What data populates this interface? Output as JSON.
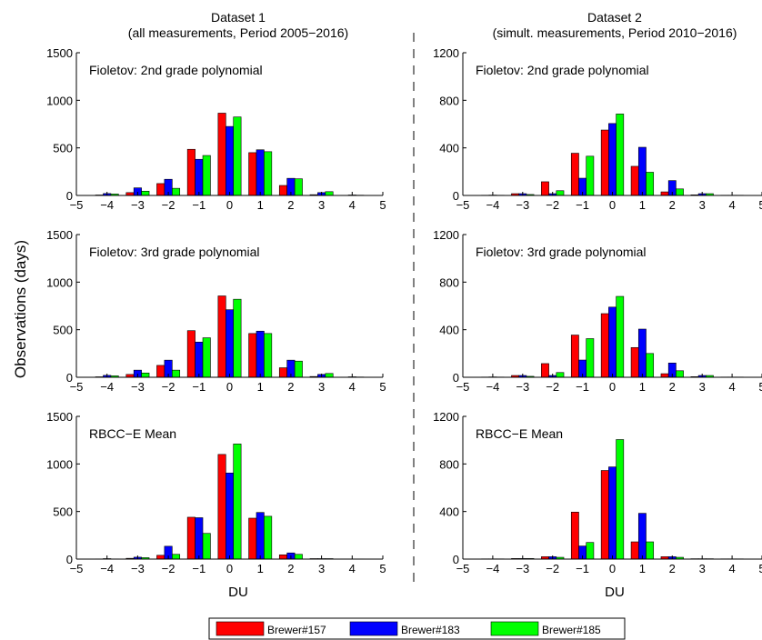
{
  "columns": [
    {
      "title_line1": "Dataset 1",
      "title_line2": "(all measurements, Period 2005−2016)"
    },
    {
      "title_line1": "Dataset 2",
      "title_line2": "(simult. measurements, Period 2010−2016)"
    }
  ],
  "ylabel": "Observations (days)",
  "xlabel": "DU",
  "legend": {
    "position": "bottom-center",
    "entries": [
      "Brewer#157",
      "Brewer#183",
      "Brewer#185"
    ]
  },
  "colors": {
    "Brewer#157": "#ff0000",
    "Brewer#183": "#0000ff",
    "Brewer#185": "#00ff00"
  },
  "chart_data": [
    {
      "type": "bar",
      "panel": "dataset1-poly2",
      "annotation": "Fioletov: 2nd grade polynomial",
      "categories": [
        -4,
        -3,
        -2,
        -1,
        0,
        1,
        2,
        3,
        4
      ],
      "xlim": [
        -5,
        5
      ],
      "xticks": [
        -5,
        -4,
        -3,
        -2,
        -1,
        0,
        1,
        2,
        3,
        4,
        5
      ],
      "ylim": [
        0,
        1500
      ],
      "yticks": [
        0,
        500,
        1000,
        1500
      ],
      "series": [
        {
          "name": "Brewer#157",
          "values": [
            5,
            30,
            125,
            485,
            865,
            450,
            105,
            8,
            2
          ]
        },
        {
          "name": "Brewer#183",
          "values": [
            20,
            80,
            170,
            380,
            725,
            480,
            180,
            30,
            5
          ]
        },
        {
          "name": "Brewer#185",
          "values": [
            15,
            45,
            75,
            420,
            825,
            460,
            175,
            40,
            3
          ]
        }
      ]
    },
    {
      "type": "bar",
      "panel": "dataset2-poly2",
      "annotation": "Fioletov: 2nd grade polynomial",
      "categories": [
        -4,
        -3,
        -2,
        -1,
        0,
        1,
        2,
        3,
        4
      ],
      "xlim": [
        -5,
        5
      ],
      "xticks": [
        -5,
        -4,
        -3,
        -2,
        -1,
        0,
        1,
        2,
        3,
        4,
        5
      ],
      "ylim": [
        0,
        1200
      ],
      "yticks": [
        0,
        400,
        800,
        1200
      ],
      "series": [
        {
          "name": "Brewer#157",
          "values": [
            2,
            15,
            115,
            355,
            550,
            245,
            30,
            5,
            2
          ]
        },
        {
          "name": "Brewer#183",
          "values": [
            3,
            15,
            15,
            145,
            605,
            405,
            125,
            15,
            2
          ]
        },
        {
          "name": "Brewer#185",
          "values": [
            2,
            8,
            40,
            330,
            685,
            195,
            55,
            15,
            2
          ]
        }
      ]
    },
    {
      "type": "bar",
      "panel": "dataset1-poly3",
      "annotation": "Fioletov: 3rd grade polynomial",
      "categories": [
        -4,
        -3,
        -2,
        -1,
        0,
        1,
        2,
        3,
        4
      ],
      "xlim": [
        -5,
        5
      ],
      "xticks": [
        -5,
        -4,
        -3,
        -2,
        -1,
        0,
        1,
        2,
        3,
        4,
        5
      ],
      "ylim": [
        0,
        1500
      ],
      "yticks": [
        0,
        500,
        1000,
        1500
      ],
      "series": [
        {
          "name": "Brewer#157",
          "values": [
            5,
            30,
            125,
            490,
            855,
            460,
            100,
            8,
            2
          ]
        },
        {
          "name": "Brewer#183",
          "values": [
            20,
            75,
            180,
            370,
            710,
            485,
            180,
            30,
            5
          ]
        },
        {
          "name": "Brewer#185",
          "values": [
            15,
            45,
            75,
            415,
            820,
            460,
            170,
            40,
            3
          ]
        }
      ]
    },
    {
      "type": "bar",
      "panel": "dataset2-poly3",
      "annotation": "Fioletov: 3rd grade polynomial",
      "categories": [
        -4,
        -3,
        -2,
        -1,
        0,
        1,
        2,
        3,
        4
      ],
      "xlim": [
        -5,
        5
      ],
      "xticks": [
        -5,
        -4,
        -3,
        -2,
        -1,
        0,
        1,
        2,
        3,
        4,
        5
      ],
      "ylim": [
        0,
        1200
      ],
      "yticks": [
        0,
        400,
        800,
        1200
      ],
      "series": [
        {
          "name": "Brewer#157",
          "values": [
            2,
            15,
            115,
            355,
            535,
            250,
            30,
            5,
            2
          ]
        },
        {
          "name": "Brewer#183",
          "values": [
            3,
            15,
            15,
            145,
            590,
            405,
            120,
            15,
            2
          ]
        },
        {
          "name": "Brewer#185",
          "values": [
            2,
            8,
            40,
            325,
            680,
            200,
            55,
            15,
            2
          ]
        }
      ]
    },
    {
      "type": "bar",
      "panel": "dataset1-mean",
      "annotation": "RBCC−E Mean",
      "categories": [
        -4,
        -3,
        -2,
        -1,
        0,
        1,
        2,
        3,
        4
      ],
      "xlim": [
        -5,
        5
      ],
      "xticks": [
        -5,
        -4,
        -3,
        -2,
        -1,
        0,
        1,
        2,
        3,
        4,
        5
      ],
      "ylim": [
        0,
        1500
      ],
      "yticks": [
        0,
        500,
        1000,
        1500
      ],
      "series": [
        {
          "name": "Brewer#157",
          "values": [
            2,
            8,
            40,
            440,
            1100,
            430,
            45,
            5,
            2
          ]
        },
        {
          "name": "Brewer#183",
          "values": [
            5,
            20,
            135,
            435,
            905,
            490,
            65,
            5,
            2
          ]
        },
        {
          "name": "Brewer#185",
          "values": [
            2,
            15,
            50,
            270,
            1210,
            450,
            50,
            5,
            2
          ]
        }
      ]
    },
    {
      "type": "bar",
      "panel": "dataset2-mean",
      "annotation": "RBCC−E Mean",
      "categories": [
        -4,
        -3,
        -2,
        -1,
        0,
        1,
        2,
        3,
        4
      ],
      "xlim": [
        -5,
        5
      ],
      "xticks": [
        -5,
        -4,
        -3,
        -2,
        -1,
        0,
        1,
        2,
        3,
        4,
        5
      ],
      "ylim": [
        0,
        1200
      ],
      "yticks": [
        0,
        400,
        800,
        1200
      ],
      "series": [
        {
          "name": "Brewer#157",
          "values": [
            2,
            5,
            20,
            395,
            745,
            145,
            20,
            3,
            2
          ]
        },
        {
          "name": "Brewer#183",
          "values": [
            2,
            5,
            20,
            110,
            775,
            385,
            20,
            3,
            2
          ]
        },
        {
          "name": "Brewer#185",
          "values": [
            2,
            5,
            15,
            140,
            1005,
            145,
            15,
            3,
            2
          ]
        }
      ]
    }
  ]
}
